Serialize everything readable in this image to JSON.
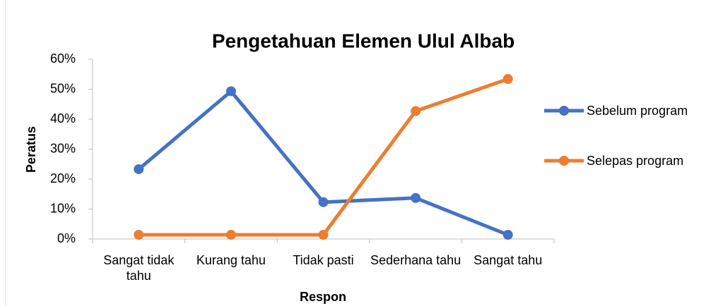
{
  "chart_data": {
    "type": "line",
    "title": "Pengetahuan Elemen Ulul Albab",
    "x_label": "Respon",
    "y_label": "Peratus",
    "categories": [
      "Sangat tidak tahu",
      "Kurang tahu",
      "Tidak pasti",
      "Sederhana tahu",
      "Sangat tahu"
    ],
    "series": [
      {
        "name": "Sebelum program",
        "color": "#4472c4",
        "values": [
          23.3,
          49.3,
          12.3,
          13.7,
          1.4
        ]
      },
      {
        "name": "Selepas program",
        "color": "#ed7d31",
        "values": [
          1.4,
          1.4,
          1.4,
          42.7,
          53.4
        ]
      }
    ],
    "ylim": [
      0,
      60
    ],
    "yticks": [
      {
        "value": 0,
        "label": "0%"
      },
      {
        "value": 10,
        "label": "10%"
      },
      {
        "value": 20,
        "label": "20%"
      },
      {
        "value": 30,
        "label": "30%"
      },
      {
        "value": 40,
        "label": "40%"
      },
      {
        "value": 50,
        "label": "50%"
      },
      {
        "value": 60,
        "label": "60%"
      }
    ],
    "grid": false,
    "legend": "right"
  }
}
